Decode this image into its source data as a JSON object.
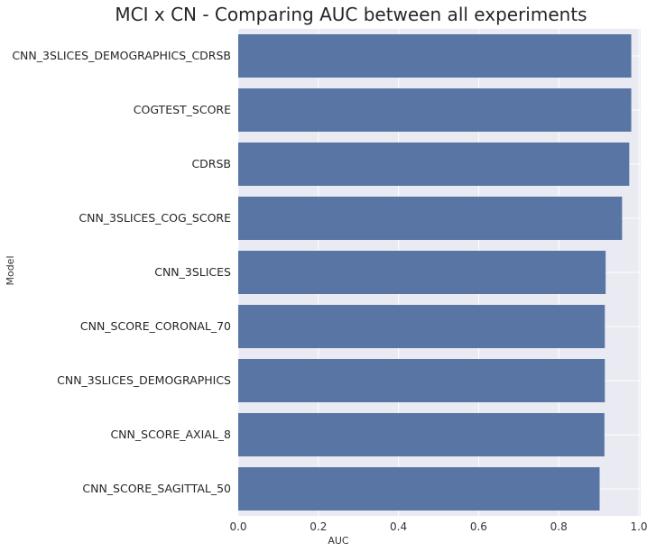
{
  "chart_data": {
    "type": "bar",
    "orientation": "horizontal",
    "title": "MCI x CN - Comparing AUC between all experiments",
    "xlabel": "AUC",
    "ylabel": "Model",
    "xlim": [
      0,
      1.0
    ],
    "xticks": [
      "0.0",
      "0.2",
      "0.4",
      "0.6",
      "0.8",
      "1.0"
    ],
    "grid": true,
    "bar_color": "#5975a4",
    "background_color": "#eaeaf2",
    "categories": [
      "CNN_3SLICES_DEMOGRAPHICS_CDRSB",
      "COGTEST_SCORE",
      "CDRSB",
      "CNN_3SLICES_COG_SCORE",
      "CNN_3SLICES",
      "CNN_SCORE_CORONAL_70",
      "CNN_3SLICES_DEMOGRAPHICS",
      "CNN_SCORE_AXIAL_8",
      "CNN_SCORE_SAGITTAL_50"
    ],
    "values": [
      0.981,
      0.981,
      0.976,
      0.958,
      0.917,
      0.915,
      0.915,
      0.914,
      0.902
    ]
  }
}
